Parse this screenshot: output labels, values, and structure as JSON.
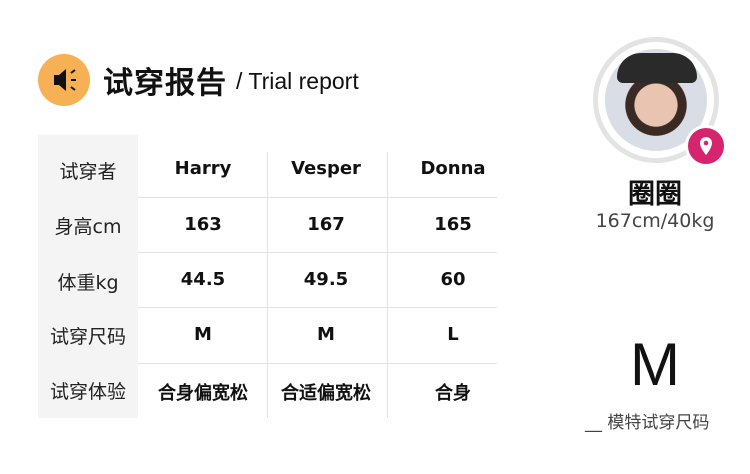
{
  "header": {
    "title": "试穿报告",
    "separator": "/",
    "subtitle": "Trial report",
    "icon": "speaker-icon",
    "accent": "#f7b155"
  },
  "table": {
    "row_labels": [
      "试穿者",
      "身高cm",
      "体重kg",
      "试穿尺码",
      "试穿体验"
    ],
    "columns": [
      {
        "name": "Harry",
        "height": "163",
        "weight": "44.5",
        "size": "M",
        "fit": "合身偏宽松"
      },
      {
        "name": "Vesper",
        "height": "167",
        "weight": "49.5",
        "size": "M",
        "fit": "合适偏宽松"
      },
      {
        "name": "Donna",
        "height": "165",
        "weight": "60",
        "size": "L",
        "fit": "合身"
      }
    ]
  },
  "model": {
    "name": "圈圈",
    "stats": "167cm/40kg",
    "size": "M",
    "size_label": "__ 模特试穿尺码",
    "badge_icon": "location-pin-icon",
    "badge_color": "#d6246e"
  }
}
